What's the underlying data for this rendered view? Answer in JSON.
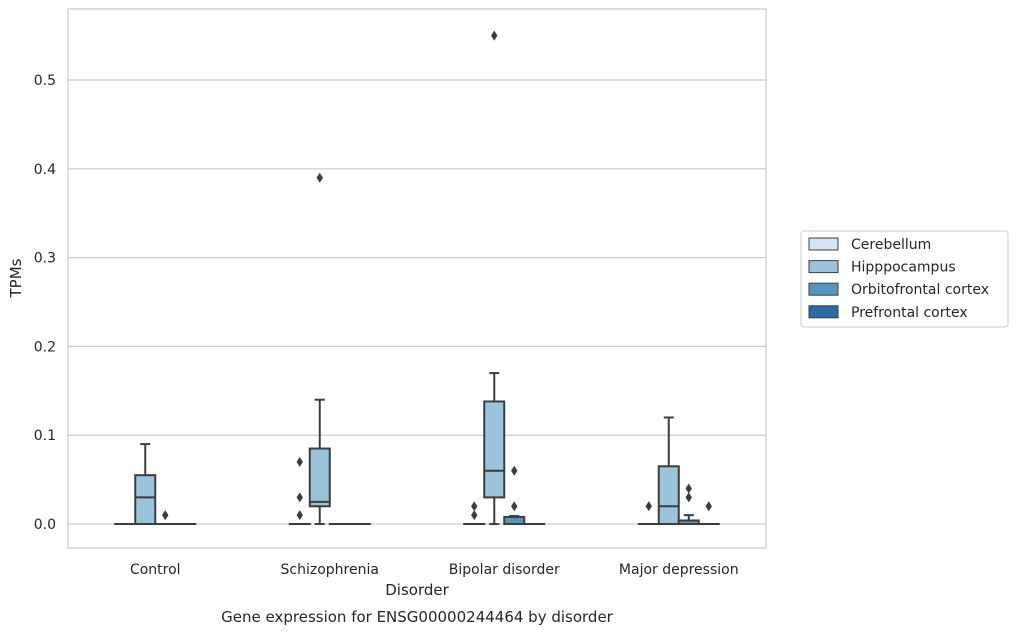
{
  "chart_data": {
    "type": "box",
    "title": "",
    "caption": "Gene expression for ENSG00000244464 by disorder",
    "xlabel": "Disorder",
    "ylabel": "TPMs",
    "ylim": [
      -0.027,
      0.58
    ],
    "yticks": [
      "0.0",
      "0.1",
      "0.2",
      "0.3",
      "0.4",
      "0.5"
    ],
    "ytick_values": [
      0.0,
      0.1,
      0.2,
      0.3,
      0.4,
      0.5
    ],
    "grid": "horizontal",
    "legend_position": "right",
    "categories": [
      "Control",
      "Schizophrenia",
      "Bipolar disorder",
      "Major depression"
    ],
    "series": [
      {
        "name": "Cerebellum",
        "color": "#d4e4f2",
        "boxes": [
          {
            "q1": 0,
            "median": 0,
            "q3": 0,
            "whislo": 0,
            "whishi": 0,
            "fliers": []
          },
          {
            "q1": 0,
            "median": 0,
            "q3": 0,
            "whislo": 0,
            "whishi": 0,
            "fliers": [
              0.01,
              0.03,
              0.07
            ]
          },
          {
            "q1": 0,
            "median": 0,
            "q3": 0,
            "whislo": 0,
            "whishi": 0,
            "fliers": [
              0.01,
              0.02
            ]
          },
          {
            "q1": 0,
            "median": 0,
            "q3": 0,
            "whislo": 0,
            "whishi": 0,
            "fliers": [
              0.02
            ]
          }
        ]
      },
      {
        "name": "Hipppocampus",
        "color": "#9ac3dc",
        "boxes": [
          {
            "q1": 0,
            "median": 0.03,
            "q3": 0.055,
            "whislo": 0,
            "whishi": 0.09,
            "fliers": []
          },
          {
            "q1": 0.02,
            "median": 0.025,
            "q3": 0.085,
            "whislo": 0,
            "whishi": 0.14,
            "fliers": [
              0.39
            ]
          },
          {
            "q1": 0.03,
            "median": 0.06,
            "q3": 0.138,
            "whislo": 0,
            "whishi": 0.17,
            "fliers": [
              0.55
            ]
          },
          {
            "q1": 0,
            "median": 0.02,
            "q3": 0.065,
            "whislo": 0,
            "whishi": 0.12,
            "fliers": []
          }
        ]
      },
      {
        "name": "Orbitofrontal cortex",
        "color": "#5596c4",
        "boxes": [
          {
            "q1": 0,
            "median": 0,
            "q3": 0,
            "whislo": 0,
            "whishi": 0,
            "fliers": [
              0.01
            ]
          },
          {
            "q1": 0,
            "median": 0,
            "q3": 0,
            "whislo": 0,
            "whishi": 0,
            "fliers": []
          },
          {
            "q1": 0,
            "median": 0,
            "q3": 0.008,
            "whislo": 0,
            "whishi": 0.009,
            "fliers": [
              0.02,
              0.06
            ]
          },
          {
            "q1": 0,
            "median": 0,
            "q3": 0.004,
            "whislo": 0,
            "whishi": 0.01,
            "fliers": [
              0.03,
              0.04
            ]
          }
        ]
      },
      {
        "name": "Prefrontal cortex",
        "color": "#2c6ba8",
        "boxes": [
          {
            "q1": 0,
            "median": 0,
            "q3": 0,
            "whislo": 0,
            "whishi": 0,
            "fliers": []
          },
          {
            "q1": 0,
            "median": 0,
            "q3": 0,
            "whislo": 0,
            "whishi": 0,
            "fliers": []
          },
          {
            "q1": 0,
            "median": 0,
            "q3": 0,
            "whislo": 0,
            "whishi": 0,
            "fliers": []
          },
          {
            "q1": 0,
            "median": 0,
            "q3": 0,
            "whislo": 0,
            "whishi": 0,
            "fliers": [
              0.02
            ]
          }
        ]
      }
    ]
  }
}
